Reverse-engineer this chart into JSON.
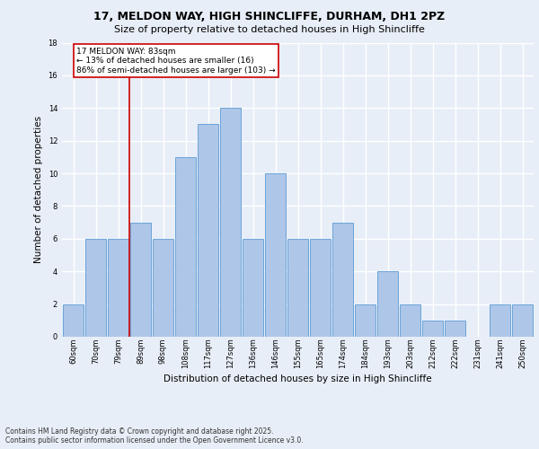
{
  "title1": "17, MELDON WAY, HIGH SHINCLIFFE, DURHAM, DH1 2PZ",
  "title2": "Size of property relative to detached houses in High Shincliffe",
  "xlabel": "Distribution of detached houses by size in High Shincliffe",
  "ylabel": "Number of detached properties",
  "bin_labels": [
    "60sqm",
    "70sqm",
    "79sqm",
    "89sqm",
    "98sqm",
    "108sqm",
    "117sqm",
    "127sqm",
    "136sqm",
    "146sqm",
    "155sqm",
    "165sqm",
    "174sqm",
    "184sqm",
    "193sqm",
    "203sqm",
    "212sqm",
    "222sqm",
    "231sqm",
    "241sqm",
    "250sqm"
  ],
  "bar_values": [
    2,
    6,
    6,
    7,
    6,
    11,
    13,
    14,
    6,
    10,
    6,
    6,
    7,
    2,
    4,
    2,
    1,
    1,
    0,
    2,
    2
  ],
  "bar_color": "#aec6e8",
  "bar_edge_color": "#5b9bd5",
  "red_line_bin": 2,
  "annotation_line1": "17 MELDON WAY: 83sqm",
  "annotation_line2": "← 13% of detached houses are smaller (16)",
  "annotation_line3": "86% of semi-detached houses are larger (103) →",
  "annotation_box_color": "#ffffff",
  "annotation_box_edge": "#cc0000",
  "footer": "Contains HM Land Registry data © Crown copyright and database right 2025.\nContains public sector information licensed under the Open Government Licence v3.0.",
  "ylim": [
    0,
    18
  ],
  "yticks": [
    0,
    2,
    4,
    6,
    8,
    10,
    12,
    14,
    16,
    18
  ],
  "background_color": "#e8eef7",
  "grid_color": "#ffffff",
  "title1_fontsize": 9,
  "title2_fontsize": 8,
  "ylabel_fontsize": 7.5,
  "xlabel_fontsize": 7.5,
  "tick_fontsize": 6,
  "annotation_fontsize": 6.5,
  "footer_fontsize": 5.5
}
